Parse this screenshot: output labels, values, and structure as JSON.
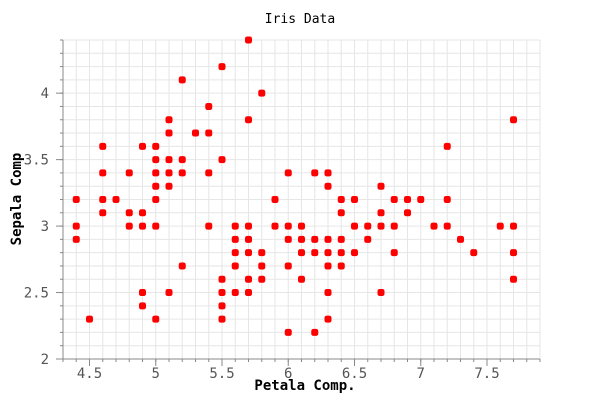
{
  "chart_data": {
    "type": "scatter",
    "title": "Iris Data",
    "xlabel": "Petala Comp.",
    "ylabel": "Sepala Comp",
    "xlim": [
      4.3,
      7.9
    ],
    "ylim": [
      2.0,
      4.4
    ],
    "xticks": [
      "4.5",
      "5",
      "5.5",
      "6",
      "6.5",
      "7",
      "7.5"
    ],
    "yticks": [
      "2",
      "2.5",
      "3",
      "3.5",
      "4"
    ],
    "grid": true,
    "marker_color": "#ff0000",
    "points": [
      [
        4.4,
        3.2
      ],
      [
        4.4,
        3.0
      ],
      [
        4.4,
        2.9
      ],
      [
        4.5,
        2.3
      ],
      [
        4.6,
        3.6
      ],
      [
        4.6,
        3.4
      ],
      [
        4.6,
        3.2
      ],
      [
        4.6,
        3.1
      ],
      [
        4.7,
        3.2
      ],
      [
        4.8,
        3.4
      ],
      [
        4.8,
        3.1
      ],
      [
        4.8,
        3.0
      ],
      [
        4.9,
        3.6
      ],
      [
        4.9,
        3.1
      ],
      [
        4.9,
        3.0
      ],
      [
        4.9,
        2.5
      ],
      [
        4.9,
        2.4
      ],
      [
        5.0,
        3.6
      ],
      [
        5.0,
        3.5
      ],
      [
        5.0,
        3.4
      ],
      [
        5.0,
        3.3
      ],
      [
        5.0,
        3.2
      ],
      [
        5.0,
        3.0
      ],
      [
        5.0,
        2.3
      ],
      [
        5.1,
        3.8
      ],
      [
        5.1,
        3.7
      ],
      [
        5.1,
        3.5
      ],
      [
        5.1,
        3.4
      ],
      [
        5.1,
        3.3
      ],
      [
        5.1,
        2.5
      ],
      [
        5.2,
        4.1
      ],
      [
        5.2,
        3.5
      ],
      [
        5.2,
        3.4
      ],
      [
        5.2,
        2.7
      ],
      [
        5.3,
        3.7
      ],
      [
        5.4,
        3.9
      ],
      [
        5.4,
        3.7
      ],
      [
        5.4,
        3.4
      ],
      [
        5.4,
        3.0
      ],
      [
        5.5,
        4.2
      ],
      [
        5.5,
        3.5
      ],
      [
        5.5,
        2.6
      ],
      [
        5.5,
        2.5
      ],
      [
        5.5,
        2.4
      ],
      [
        5.5,
        2.3
      ],
      [
        5.6,
        3.0
      ],
      [
        5.6,
        2.9
      ],
      [
        5.6,
        2.8
      ],
      [
        5.6,
        2.7
      ],
      [
        5.6,
        2.5
      ],
      [
        5.7,
        4.4
      ],
      [
        5.7,
        3.8
      ],
      [
        5.7,
        3.0
      ],
      [
        5.7,
        2.9
      ],
      [
        5.7,
        2.8
      ],
      [
        5.7,
        2.6
      ],
      [
        5.7,
        2.5
      ],
      [
        5.8,
        4.0
      ],
      [
        5.8,
        2.8
      ],
      [
        5.8,
        2.7
      ],
      [
        5.8,
        2.6
      ],
      [
        5.9,
        3.2
      ],
      [
        5.9,
        3.0
      ],
      [
        6.0,
        3.4
      ],
      [
        6.0,
        3.0
      ],
      [
        6.0,
        2.9
      ],
      [
        6.0,
        2.7
      ],
      [
        6.0,
        2.2
      ],
      [
        6.1,
        3.0
      ],
      [
        6.1,
        2.9
      ],
      [
        6.1,
        2.8
      ],
      [
        6.1,
        2.6
      ],
      [
        6.2,
        3.4
      ],
      [
        6.2,
        2.9
      ],
      [
        6.2,
        2.8
      ],
      [
        6.2,
        2.2
      ],
      [
        6.3,
        3.4
      ],
      [
        6.3,
        3.3
      ],
      [
        6.3,
        2.9
      ],
      [
        6.3,
        2.8
      ],
      [
        6.3,
        2.7
      ],
      [
        6.3,
        2.5
      ],
      [
        6.3,
        2.3
      ],
      [
        6.4,
        3.2
      ],
      [
        6.4,
        3.1
      ],
      [
        6.4,
        2.9
      ],
      [
        6.4,
        2.8
      ],
      [
        6.4,
        2.7
      ],
      [
        6.5,
        3.2
      ],
      [
        6.5,
        3.0
      ],
      [
        6.5,
        2.8
      ],
      [
        6.6,
        3.0
      ],
      [
        6.6,
        2.9
      ],
      [
        6.7,
        3.3
      ],
      [
        6.7,
        3.1
      ],
      [
        6.7,
        3.0
      ],
      [
        6.7,
        2.5
      ],
      [
        6.8,
        3.2
      ],
      [
        6.8,
        3.0
      ],
      [
        6.8,
        2.8
      ],
      [
        6.9,
        3.2
      ],
      [
        6.9,
        3.1
      ],
      [
        7.0,
        3.2
      ],
      [
        7.1,
        3.0
      ],
      [
        7.2,
        3.6
      ],
      [
        7.2,
        3.2
      ],
      [
        7.2,
        3.0
      ],
      [
        7.3,
        2.9
      ],
      [
        7.4,
        2.8
      ],
      [
        7.6,
        3.0
      ],
      [
        7.7,
        3.8
      ],
      [
        7.7,
        3.0
      ],
      [
        7.7,
        2.8
      ],
      [
        7.7,
        2.6
      ]
    ]
  }
}
